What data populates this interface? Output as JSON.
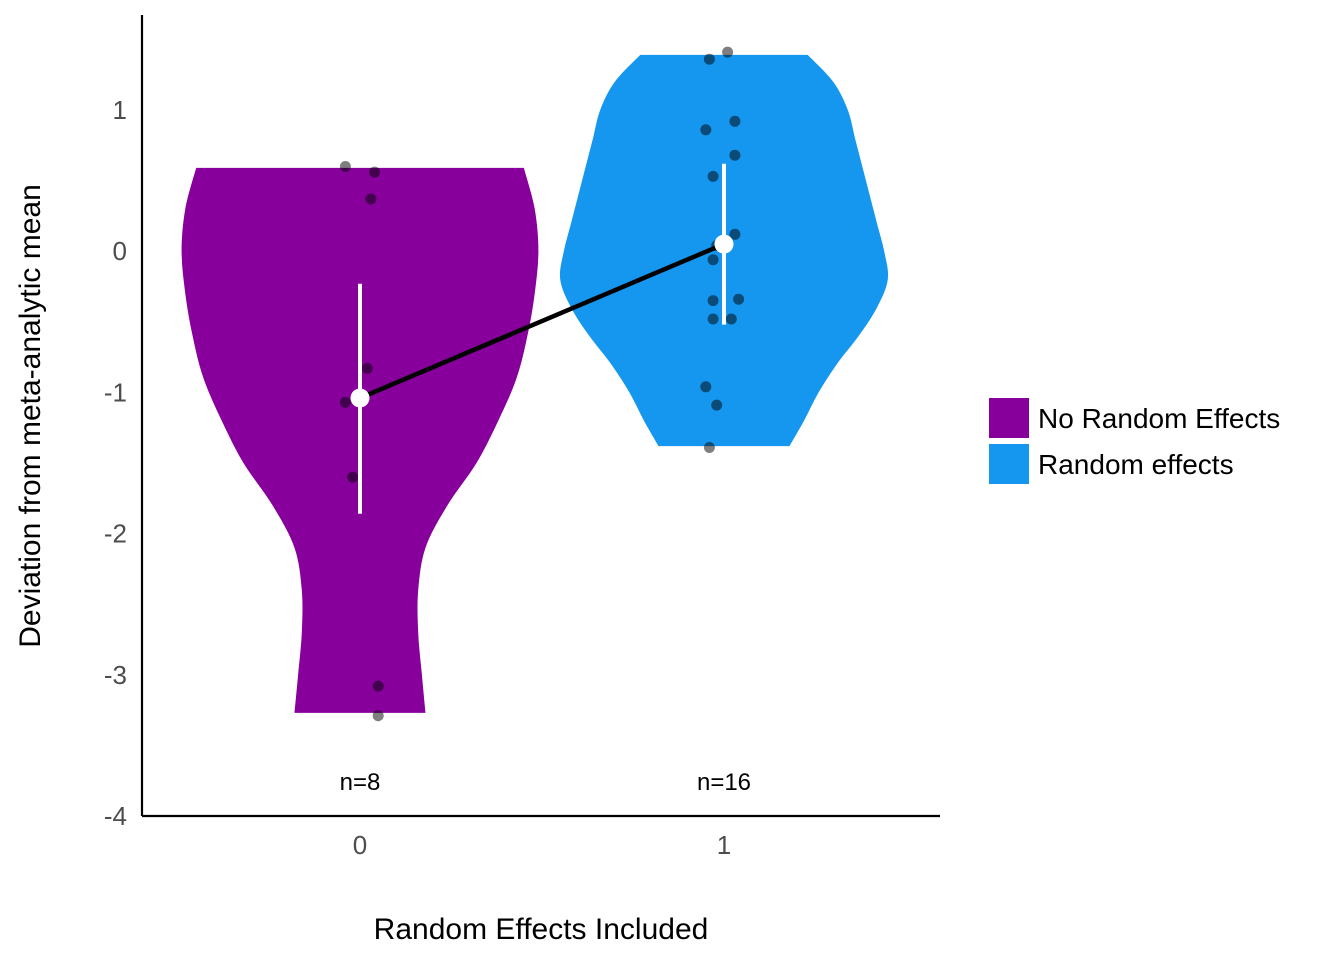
{
  "chart_data": {
    "type": "violin",
    "xlabel": "Random Effects Included",
    "ylabel": "Deviation from meta-analytic mean",
    "categories": [
      "0",
      "1"
    ],
    "ylim": [
      -4,
      1.6
    ],
    "yticks": [
      1,
      0,
      -1,
      -2,
      -3,
      -4
    ],
    "ytick_labels": [
      "1",
      "0",
      "-1",
      "-2",
      "-3",
      "-4"
    ],
    "legend_position": "right",
    "mean_line_color": "#000000",
    "groups": [
      {
        "category": "0",
        "name": "No Random Effects",
        "color": "#87009c",
        "n_label": "n=8",
        "mean": -1.04,
        "error_low": -1.86,
        "error_high": -0.23,
        "range": [
          -3.27,
          0.59
        ],
        "violin_profile": [
          [
            0.59,
            0.45
          ],
          [
            0.3,
            0.48
          ],
          [
            0.0,
            0.49
          ],
          [
            -0.3,
            0.48
          ],
          [
            -0.6,
            0.46
          ],
          [
            -0.9,
            0.43
          ],
          [
            -1.2,
            0.38
          ],
          [
            -1.5,
            0.32
          ],
          [
            -1.8,
            0.24
          ],
          [
            -2.1,
            0.18
          ],
          [
            -2.4,
            0.16
          ],
          [
            -2.7,
            0.16
          ],
          [
            -3.0,
            0.17
          ],
          [
            -3.27,
            0.18
          ]
        ],
        "points": [
          {
            "x": -0.04,
            "y": 0.6
          },
          {
            "x": 0.04,
            "y": 0.56
          },
          {
            "x": 0.03,
            "y": 0.37
          },
          {
            "x": 0.02,
            "y": -0.83
          },
          {
            "x": -0.04,
            "y": -1.07
          },
          {
            "x": -0.02,
            "y": -1.6
          },
          {
            "x": 0.05,
            "y": -3.08
          },
          {
            "x": 0.05,
            "y": -3.29
          }
        ]
      },
      {
        "category": "1",
        "name": "Random effects",
        "color": "#1597ef",
        "n_label": "n=16",
        "mean": 0.05,
        "error_low": -0.52,
        "error_high": 0.62,
        "range": [
          -1.38,
          1.39
        ],
        "violin_profile": [
          [
            1.39,
            0.23
          ],
          [
            1.2,
            0.3
          ],
          [
            1.0,
            0.34
          ],
          [
            0.8,
            0.36
          ],
          [
            0.6,
            0.38
          ],
          [
            0.4,
            0.4
          ],
          [
            0.2,
            0.42
          ],
          [
            0.0,
            0.44
          ],
          [
            -0.2,
            0.45
          ],
          [
            -0.4,
            0.42
          ],
          [
            -0.6,
            0.37
          ],
          [
            -0.8,
            0.31
          ],
          [
            -1.0,
            0.26
          ],
          [
            -1.2,
            0.22
          ],
          [
            -1.38,
            0.18
          ]
        ],
        "points": [
          {
            "x": 0.01,
            "y": 1.41
          },
          {
            "x": -0.04,
            "y": 1.36
          },
          {
            "x": 0.03,
            "y": 0.92
          },
          {
            "x": -0.05,
            "y": 0.86
          },
          {
            "x": 0.03,
            "y": 0.68
          },
          {
            "x": -0.03,
            "y": 0.53
          },
          {
            "x": 0.03,
            "y": 0.12
          },
          {
            "x": -0.02,
            "y": 0.04
          },
          {
            "x": -0.03,
            "y": -0.06
          },
          {
            "x": 0.04,
            "y": -0.34
          },
          {
            "x": -0.03,
            "y": -0.35
          },
          {
            "x": -0.03,
            "y": -0.48
          },
          {
            "x": 0.02,
            "y": -0.48
          },
          {
            "x": -0.05,
            "y": -0.96
          },
          {
            "x": -0.02,
            "y": -1.09
          },
          {
            "x": -0.04,
            "y": -1.39
          }
        ]
      }
    ]
  }
}
